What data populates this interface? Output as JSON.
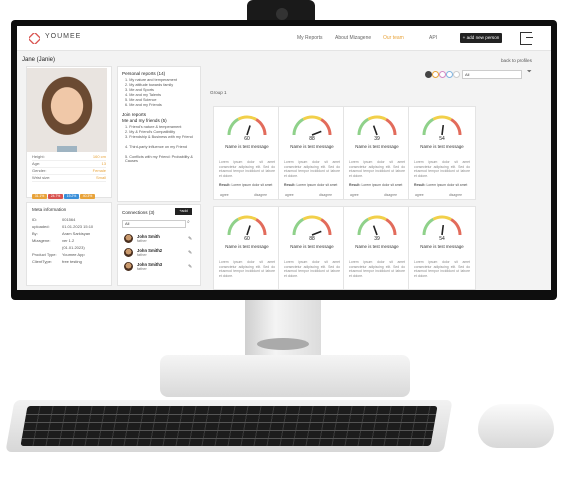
{
  "nav": {
    "logo": "YOUMEE",
    "links": [
      "My Reports",
      "About Mizagene",
      "Our team",
      "API"
    ],
    "active_index": 2,
    "add_button": "+ add new person"
  },
  "person": {
    "title": "Jane (Janie)",
    "back": "back to profiles",
    "stats": [
      {
        "label": "Height:",
        "value": "160 cm"
      },
      {
        "label": "Age:",
        "value": "13"
      },
      {
        "label": "Gender:",
        "value": "Female"
      },
      {
        "label": "Wrist size:",
        "value": "Small"
      }
    ],
    "chips": [
      {
        "label": "31.1%",
        "color": "#e8a33a"
      },
      {
        "label": "24.7%",
        "color": "#d9534f"
      },
      {
        "label": "19.2%",
        "color": "#3a8fd9"
      },
      {
        "label": "40.3%",
        "color": "#e8a33a"
      }
    ]
  },
  "meta": {
    "title": "Meta information",
    "rows": [
      {
        "label": "ID:",
        "value": "001564"
      },
      {
        "label": "uploaded:",
        "value": "01.01.2023 15:10"
      },
      {
        "label": "By:",
        "value": "Aram Sarkisyan"
      },
      {
        "label": "Mizagene:",
        "value": "ver 1.2"
      },
      {
        "label": "",
        "value": "(01.01.2023)"
      },
      {
        "label": "Product Type:",
        "value": "Youmee App"
      },
      {
        "label": "ClientType:",
        "value": "free testing"
      }
    ]
  },
  "reports": {
    "personal_title": "Personal reports (14)",
    "personal_items": [
      "1. My nature and temperament",
      "2. My attitude towards family",
      "3. Me and Sports",
      "4. Me and my Talents",
      "5. Me and Science",
      "6. Me and my Friends"
    ],
    "join_title": "Join reports",
    "join_sub_title": "Me and my friends (5)",
    "join_items": [
      "1. Friend's nature & temperament",
      "2. My & Friend's Compatibility",
      "3. Friendship & Business with my Friend",
      "4. Third-party influence on my Friend",
      "5. Conflicts with my Friend: Probability & Causes"
    ]
  },
  "connections": {
    "title": "Connections (3)",
    "add": "+add",
    "filter": "All",
    "items": [
      {
        "name": "John Smith",
        "relation": "father"
      },
      {
        "name": "John Smith2",
        "relation": "father"
      },
      {
        "name": "John Smith3",
        "relation": "father"
      }
    ]
  },
  "group": {
    "label": "Group 1",
    "filter": "All",
    "cards": [
      {
        "value": 60,
        "name": "Name is test message"
      },
      {
        "value": 88,
        "name": "Name is test message"
      },
      {
        "value": 39,
        "name": "Name is test message"
      },
      {
        "value": 54,
        "name": "Name is test message"
      },
      {
        "value": 60,
        "name": "Name is test message"
      },
      {
        "value": 88,
        "name": "Name is test message"
      },
      {
        "value": 39,
        "name": "Name is test message"
      },
      {
        "value": 54,
        "name": "Name is test message"
      }
    ],
    "lorem": "Lorem ipsum dolor sit amet consectetur adipiscing elit. Sed do eiusmod tempor incididunt ut labore et dolore.",
    "result_label": "Result:",
    "result_text": "Lorem ipsum dolor sit amet",
    "agree": "agree",
    "disagree": "disagree",
    "dot_colors": [
      "#444444",
      "#e8a33a",
      "#d48ac4",
      "#7fb3e0",
      "#cccccc"
    ]
  }
}
